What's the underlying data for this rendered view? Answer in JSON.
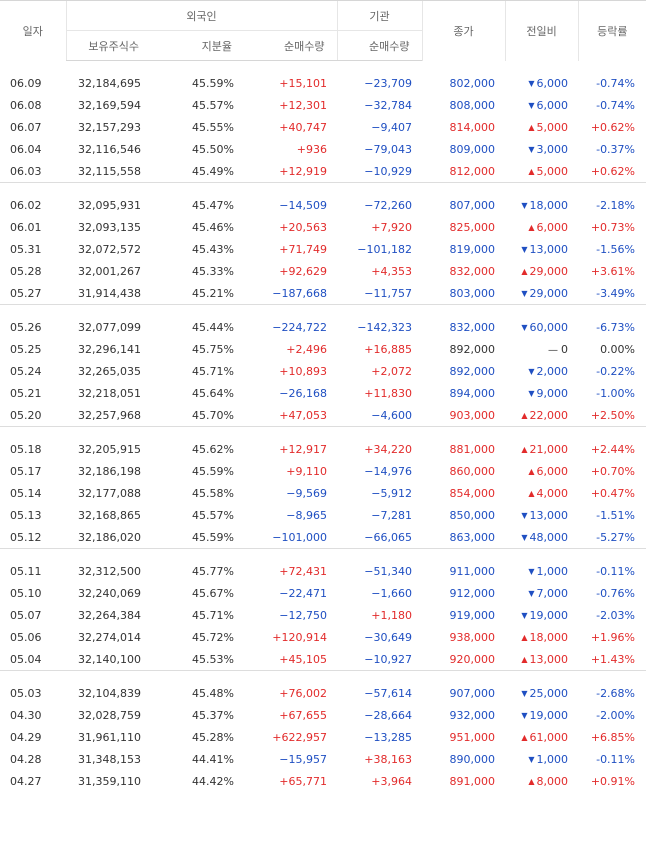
{
  "header": {
    "date": "일자",
    "foreign_group": "외국인",
    "institution_group": "기관",
    "holdings": "보유주식수",
    "ratio": "지분율",
    "foreign_net": "순매수량",
    "institution_net": "순매수량",
    "close": "종가",
    "change": "전일비",
    "rate": "등락률"
  },
  "colors": {
    "up": "#e22b2b",
    "down": "#1f4fc2",
    "flat": "#333333"
  },
  "icons": {
    "up": "triangle-up-icon",
    "down": "triangle-down-icon",
    "flat": "dash-icon"
  },
  "groups": [
    {
      "rows": [
        {
          "date": "06.09",
          "holdings": "32,184,695",
          "ratio": "45.59%",
          "foreign_net": "+15,101",
          "institution_net": "−23,709",
          "close": "802,000",
          "dir": "down",
          "change": "6,000",
          "rate": "-0.74%"
        },
        {
          "date": "06.08",
          "holdings": "32,169,594",
          "ratio": "45.57%",
          "foreign_net": "+12,301",
          "institution_net": "−32,784",
          "close": "808,000",
          "dir": "down",
          "change": "6,000",
          "rate": "-0.74%"
        },
        {
          "date": "06.07",
          "holdings": "32,157,293",
          "ratio": "45.55%",
          "foreign_net": "+40,747",
          "institution_net": "−9,407",
          "close": "814,000",
          "dir": "up",
          "change": "5,000",
          "rate": "+0.62%"
        },
        {
          "date": "06.04",
          "holdings": "32,116,546",
          "ratio": "45.50%",
          "foreign_net": "+936",
          "institution_net": "−79,043",
          "close": "809,000",
          "dir": "down",
          "change": "3,000",
          "rate": "-0.37%"
        },
        {
          "date": "06.03",
          "holdings": "32,115,558",
          "ratio": "45.49%",
          "foreign_net": "+12,919",
          "institution_net": "−10,929",
          "close": "812,000",
          "dir": "up",
          "change": "5,000",
          "rate": "+0.62%"
        }
      ]
    },
    {
      "rows": [
        {
          "date": "06.02",
          "holdings": "32,095,931",
          "ratio": "45.47%",
          "foreign_net": "−14,509",
          "institution_net": "−72,260",
          "close": "807,000",
          "dir": "down",
          "change": "18,000",
          "rate": "-2.18%"
        },
        {
          "date": "06.01",
          "holdings": "32,093,135",
          "ratio": "45.46%",
          "foreign_net": "+20,563",
          "institution_net": "+7,920",
          "close": "825,000",
          "dir": "up",
          "change": "6,000",
          "rate": "+0.73%"
        },
        {
          "date": "05.31",
          "holdings": "32,072,572",
          "ratio": "45.43%",
          "foreign_net": "+71,749",
          "institution_net": "−101,182",
          "close": "819,000",
          "dir": "down",
          "change": "13,000",
          "rate": "-1.56%"
        },
        {
          "date": "05.28",
          "holdings": "32,001,267",
          "ratio": "45.33%",
          "foreign_net": "+92,629",
          "institution_net": "+4,353",
          "close": "832,000",
          "dir": "up",
          "change": "29,000",
          "rate": "+3.61%"
        },
        {
          "date": "05.27",
          "holdings": "31,914,438",
          "ratio": "45.21%",
          "foreign_net": "−187,668",
          "institution_net": "−11,757",
          "close": "803,000",
          "dir": "down",
          "change": "29,000",
          "rate": "-3.49%"
        }
      ]
    },
    {
      "rows": [
        {
          "date": "05.26",
          "holdings": "32,077,099",
          "ratio": "45.44%",
          "foreign_net": "−224,722",
          "institution_net": "−142,323",
          "close": "832,000",
          "dir": "down",
          "change": "60,000",
          "rate": "-6.73%"
        },
        {
          "date": "05.25",
          "holdings": "32,296,141",
          "ratio": "45.75%",
          "foreign_net": "+2,496",
          "institution_net": "+16,885",
          "close": "892,000",
          "dir": "flat",
          "change": "0",
          "rate": "0.00%"
        },
        {
          "date": "05.24",
          "holdings": "32,265,035",
          "ratio": "45.71%",
          "foreign_net": "+10,893",
          "institution_net": "+2,072",
          "close": "892,000",
          "dir": "down",
          "change": "2,000",
          "rate": "-0.22%"
        },
        {
          "date": "05.21",
          "holdings": "32,218,051",
          "ratio": "45.64%",
          "foreign_net": "−26,168",
          "institution_net": "+11,830",
          "close": "894,000",
          "dir": "down",
          "change": "9,000",
          "rate": "-1.00%"
        },
        {
          "date": "05.20",
          "holdings": "32,257,968",
          "ratio": "45.70%",
          "foreign_net": "+47,053",
          "institution_net": "−4,600",
          "close": "903,000",
          "dir": "up",
          "change": "22,000",
          "rate": "+2.50%"
        }
      ]
    },
    {
      "rows": [
        {
          "date": "05.18",
          "holdings": "32,205,915",
          "ratio": "45.62%",
          "foreign_net": "+12,917",
          "institution_net": "+34,220",
          "close": "881,000",
          "dir": "up",
          "change": "21,000",
          "rate": "+2.44%"
        },
        {
          "date": "05.17",
          "holdings": "32,186,198",
          "ratio": "45.59%",
          "foreign_net": "+9,110",
          "institution_net": "−14,976",
          "close": "860,000",
          "dir": "up",
          "change": "6,000",
          "rate": "+0.70%"
        },
        {
          "date": "05.14",
          "holdings": "32,177,088",
          "ratio": "45.58%",
          "foreign_net": "−9,569",
          "institution_net": "−5,912",
          "close": "854,000",
          "dir": "up",
          "change": "4,000",
          "rate": "+0.47%"
        },
        {
          "date": "05.13",
          "holdings": "32,168,865",
          "ratio": "45.57%",
          "foreign_net": "−8,965",
          "institution_net": "−7,281",
          "close": "850,000",
          "dir": "down",
          "change": "13,000",
          "rate": "-1.51%"
        },
        {
          "date": "05.12",
          "holdings": "32,186,020",
          "ratio": "45.59%",
          "foreign_net": "−101,000",
          "institution_net": "−66,065",
          "close": "863,000",
          "dir": "down",
          "change": "48,000",
          "rate": "-5.27%"
        }
      ]
    },
    {
      "rows": [
        {
          "date": "05.11",
          "holdings": "32,312,500",
          "ratio": "45.77%",
          "foreign_net": "+72,431",
          "institution_net": "−51,340",
          "close": "911,000",
          "dir": "down",
          "change": "1,000",
          "rate": "-0.11%"
        },
        {
          "date": "05.10",
          "holdings": "32,240,069",
          "ratio": "45.67%",
          "foreign_net": "−22,471",
          "institution_net": "−1,660",
          "close": "912,000",
          "dir": "down",
          "change": "7,000",
          "rate": "-0.76%"
        },
        {
          "date": "05.07",
          "holdings": "32,264,384",
          "ratio": "45.71%",
          "foreign_net": "−12,750",
          "institution_net": "+1,180",
          "close": "919,000",
          "dir": "down",
          "change": "19,000",
          "rate": "-2.03%"
        },
        {
          "date": "05.06",
          "holdings": "32,274,014",
          "ratio": "45.72%",
          "foreign_net": "+120,914",
          "institution_net": "−30,649",
          "close": "938,000",
          "dir": "up",
          "change": "18,000",
          "rate": "+1.96%"
        },
        {
          "date": "05.04",
          "holdings": "32,140,100",
          "ratio": "45.53%",
          "foreign_net": "+45,105",
          "institution_net": "−10,927",
          "close": "920,000",
          "dir": "up",
          "change": "13,000",
          "rate": "+1.43%"
        }
      ]
    },
    {
      "rows": [
        {
          "date": "05.03",
          "holdings": "32,104,839",
          "ratio": "45.48%",
          "foreign_net": "+76,002",
          "institution_net": "−57,614",
          "close": "907,000",
          "dir": "down",
          "change": "25,000",
          "rate": "-2.68%"
        },
        {
          "date": "04.30",
          "holdings": "32,028,759",
          "ratio": "45.37%",
          "foreign_net": "+67,655",
          "institution_net": "−28,664",
          "close": "932,000",
          "dir": "down",
          "change": "19,000",
          "rate": "-2.00%"
        },
        {
          "date": "04.29",
          "holdings": "31,961,110",
          "ratio": "45.28%",
          "foreign_net": "+622,957",
          "institution_net": "−13,285",
          "close": "951,000",
          "dir": "up",
          "change": "61,000",
          "rate": "+6.85%"
        },
        {
          "date": "04.28",
          "holdings": "31,348,153",
          "ratio": "44.41%",
          "foreign_net": "−15,957",
          "institution_net": "+38,163",
          "close": "890,000",
          "dir": "down",
          "change": "1,000",
          "rate": "-0.11%"
        },
        {
          "date": "04.27",
          "holdings": "31,359,110",
          "ratio": "44.42%",
          "foreign_net": "+65,771",
          "institution_net": "+3,964",
          "close": "891,000",
          "dir": "up",
          "change": "8,000",
          "rate": "+0.91%"
        }
      ]
    }
  ]
}
